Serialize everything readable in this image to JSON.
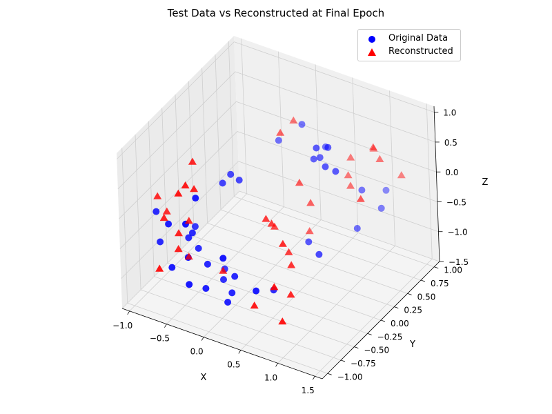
{
  "chart_data": {
    "type": "scatter",
    "title": "Test Data vs Reconstructed at Final Epoch",
    "xlabel": "X",
    "ylabel": "Y",
    "zlabel": "Z",
    "xlim": [
      -1.1,
      1.6
    ],
    "ylim": [
      -1.1,
      1.1
    ],
    "zlim": [
      -1.5,
      1.1
    ],
    "x_ticks": [
      "−1.0",
      "−0.5",
      "0.0",
      "0.5",
      "1.0",
      "1.5"
    ],
    "x_tick_values": [
      -1.0,
      -0.5,
      0.0,
      0.5,
      1.0,
      1.5
    ],
    "y_ticks": [
      "−1.00",
      "−0.75",
      "−0.50",
      "−0.25",
      "0.00",
      "0.25",
      "0.50",
      "0.75",
      "1.00"
    ],
    "y_tick_values": [
      -1.0,
      -0.75,
      -0.5,
      -0.25,
      0.0,
      0.25,
      0.5,
      0.75,
      1.0
    ],
    "z_ticks": [
      "−1.5",
      "−1.0",
      "−0.5",
      "0.0",
      "0.5",
      "1.0"
    ],
    "z_tick_values": [
      -1.5,
      -1.0,
      -0.5,
      0.0,
      0.5,
      1.0
    ],
    "grid": true,
    "legend_position": "top-right",
    "series": [
      {
        "name": "Original Data",
        "marker": "circle",
        "color": "#0000ff",
        "points": [
          [
            -0.21,
            -0.88,
            0.54
          ],
          [
            -0.29,
            -0.97,
            0.15
          ],
          [
            -0.2,
            -0.09,
            0.14
          ],
          [
            -0.3,
            -0.11,
            0.21
          ],
          [
            -0.36,
            -0.18,
            0.1
          ],
          [
            -0.66,
            -0.79,
            -0.17
          ],
          [
            -0.45,
            -0.54,
            -0.71
          ],
          [
            -0.55,
            -0.58,
            -0.54
          ],
          [
            -0.25,
            -0.65,
            -0.79
          ],
          [
            -0.61,
            -0.82,
            -0.85
          ],
          [
            -0.33,
            -0.89,
            -0.95
          ],
          [
            -0.18,
            -0.79,
            -1.04
          ],
          [
            -0.26,
            -0.33,
            -1.16
          ],
          [
            -0.16,
            -0.49,
            -1.15
          ],
          [
            0.07,
            -0.65,
            -1.13
          ],
          [
            -0.27,
            -0.97,
            -0.4
          ],
          [
            0.1,
            -0.63,
            -0.86
          ],
          [
            0.16,
            -0.91,
            -0.28
          ],
          [
            0.55,
            -0.85,
            -0.71
          ],
          [
            0.09,
            -0.76,
            -1.18
          ],
          [
            0.58,
            -0.57,
            -0.93
          ],
          [
            0.56,
            0.12,
            -0.75
          ],
          [
            0.87,
            -0.11,
            -0.62
          ],
          [
            0.92,
            0.64,
            -0.19
          ],
          [
            1.08,
            0.77,
            -0.54
          ],
          [
            0.93,
            0.52,
            -0.72
          ],
          [
            1.01,
            0.96,
            -0.44
          ],
          [
            0.14,
            0.63,
            0.58
          ],
          [
            0.46,
            0.62,
            0.35
          ],
          [
            -0.59,
            -0.4,
            -0.53
          ],
          [
            -0.91,
            -0.62,
            -0.73
          ],
          [
            0.91,
            0.19,
            0.52
          ],
          [
            -0.98,
            -0.58,
            -0.29
          ],
          [
            -0.48,
            -0.6,
            -0.41
          ],
          [
            0.55,
            0.28,
            0.49
          ],
          [
            0.78,
            0.24,
            0.82
          ],
          [
            0.59,
            0.34,
            0.48
          ],
          [
            -0.11,
            0.53,
            0.29
          ],
          [
            0.81,
            0.14,
            0.6
          ],
          [
            0.65,
            0.2,
            0.79
          ]
        ]
      },
      {
        "name": "Reconstructed",
        "marker": "triangle",
        "color": "#ff0000",
        "points": [
          [
            -0.35,
            -0.87,
            0.68
          ],
          [
            -0.37,
            -0.69,
            0.45
          ],
          [
            -0.43,
            -0.62,
            0.82
          ],
          [
            -0.88,
            -0.52,
            -0.3
          ],
          [
            -0.94,
            -0.6,
            0.0
          ],
          [
            -0.77,
            -0.72,
            -0.18
          ],
          [
            -0.56,
            -0.55,
            -0.29
          ],
          [
            -0.6,
            -0.69,
            -0.39
          ],
          [
            -0.69,
            -0.94,
            -0.8
          ],
          [
            -0.58,
            -0.73,
            -0.61
          ],
          [
            -0.69,
            -0.4,
            -1.08
          ],
          [
            0.38,
            -0.3,
            -0.15
          ],
          [
            0.35,
            -0.36,
            -0.03
          ],
          [
            0.54,
            -0.22,
            -0.63
          ],
          [
            0.7,
            0.75,
            0.16
          ],
          [
            0.71,
            0.68,
            -0.07
          ],
          [
            0.41,
            0.19,
            0.11
          ],
          [
            0.42,
            0.33,
            -0.82
          ],
          [
            0.89,
            0.92,
            0.24
          ],
          [
            0.75,
            -0.46,
            -0.54
          ],
          [
            0.26,
            -0.09,
            -0.44
          ],
          [
            0.94,
            -0.91,
            -1.0
          ],
          [
            0.88,
            -0.66,
            -0.8
          ],
          [
            0.86,
            -0.93,
            -0.44
          ],
          [
            0.79,
            0.61,
            -0.15
          ],
          [
            1.31,
            0.85,
            0.04
          ],
          [
            1.18,
            0.64,
            0.44
          ],
          [
            -0.14,
            -0.52,
            -0.97
          ],
          [
            0.52,
            -0.85,
            -0.97
          ],
          [
            -0.42,
            -0.91,
            0.55
          ],
          [
            0.75,
            -0.6,
            -0.06
          ],
          [
            0.47,
            0.3,
            -0.3
          ],
          [
            1.05,
            0.7,
            0.53
          ],
          [
            0.05,
            0.6,
            0.63
          ],
          [
            1.24,
            0.19,
            0.2
          ],
          [
            0.06,
            0.34,
            0.66
          ]
        ]
      }
    ]
  }
}
